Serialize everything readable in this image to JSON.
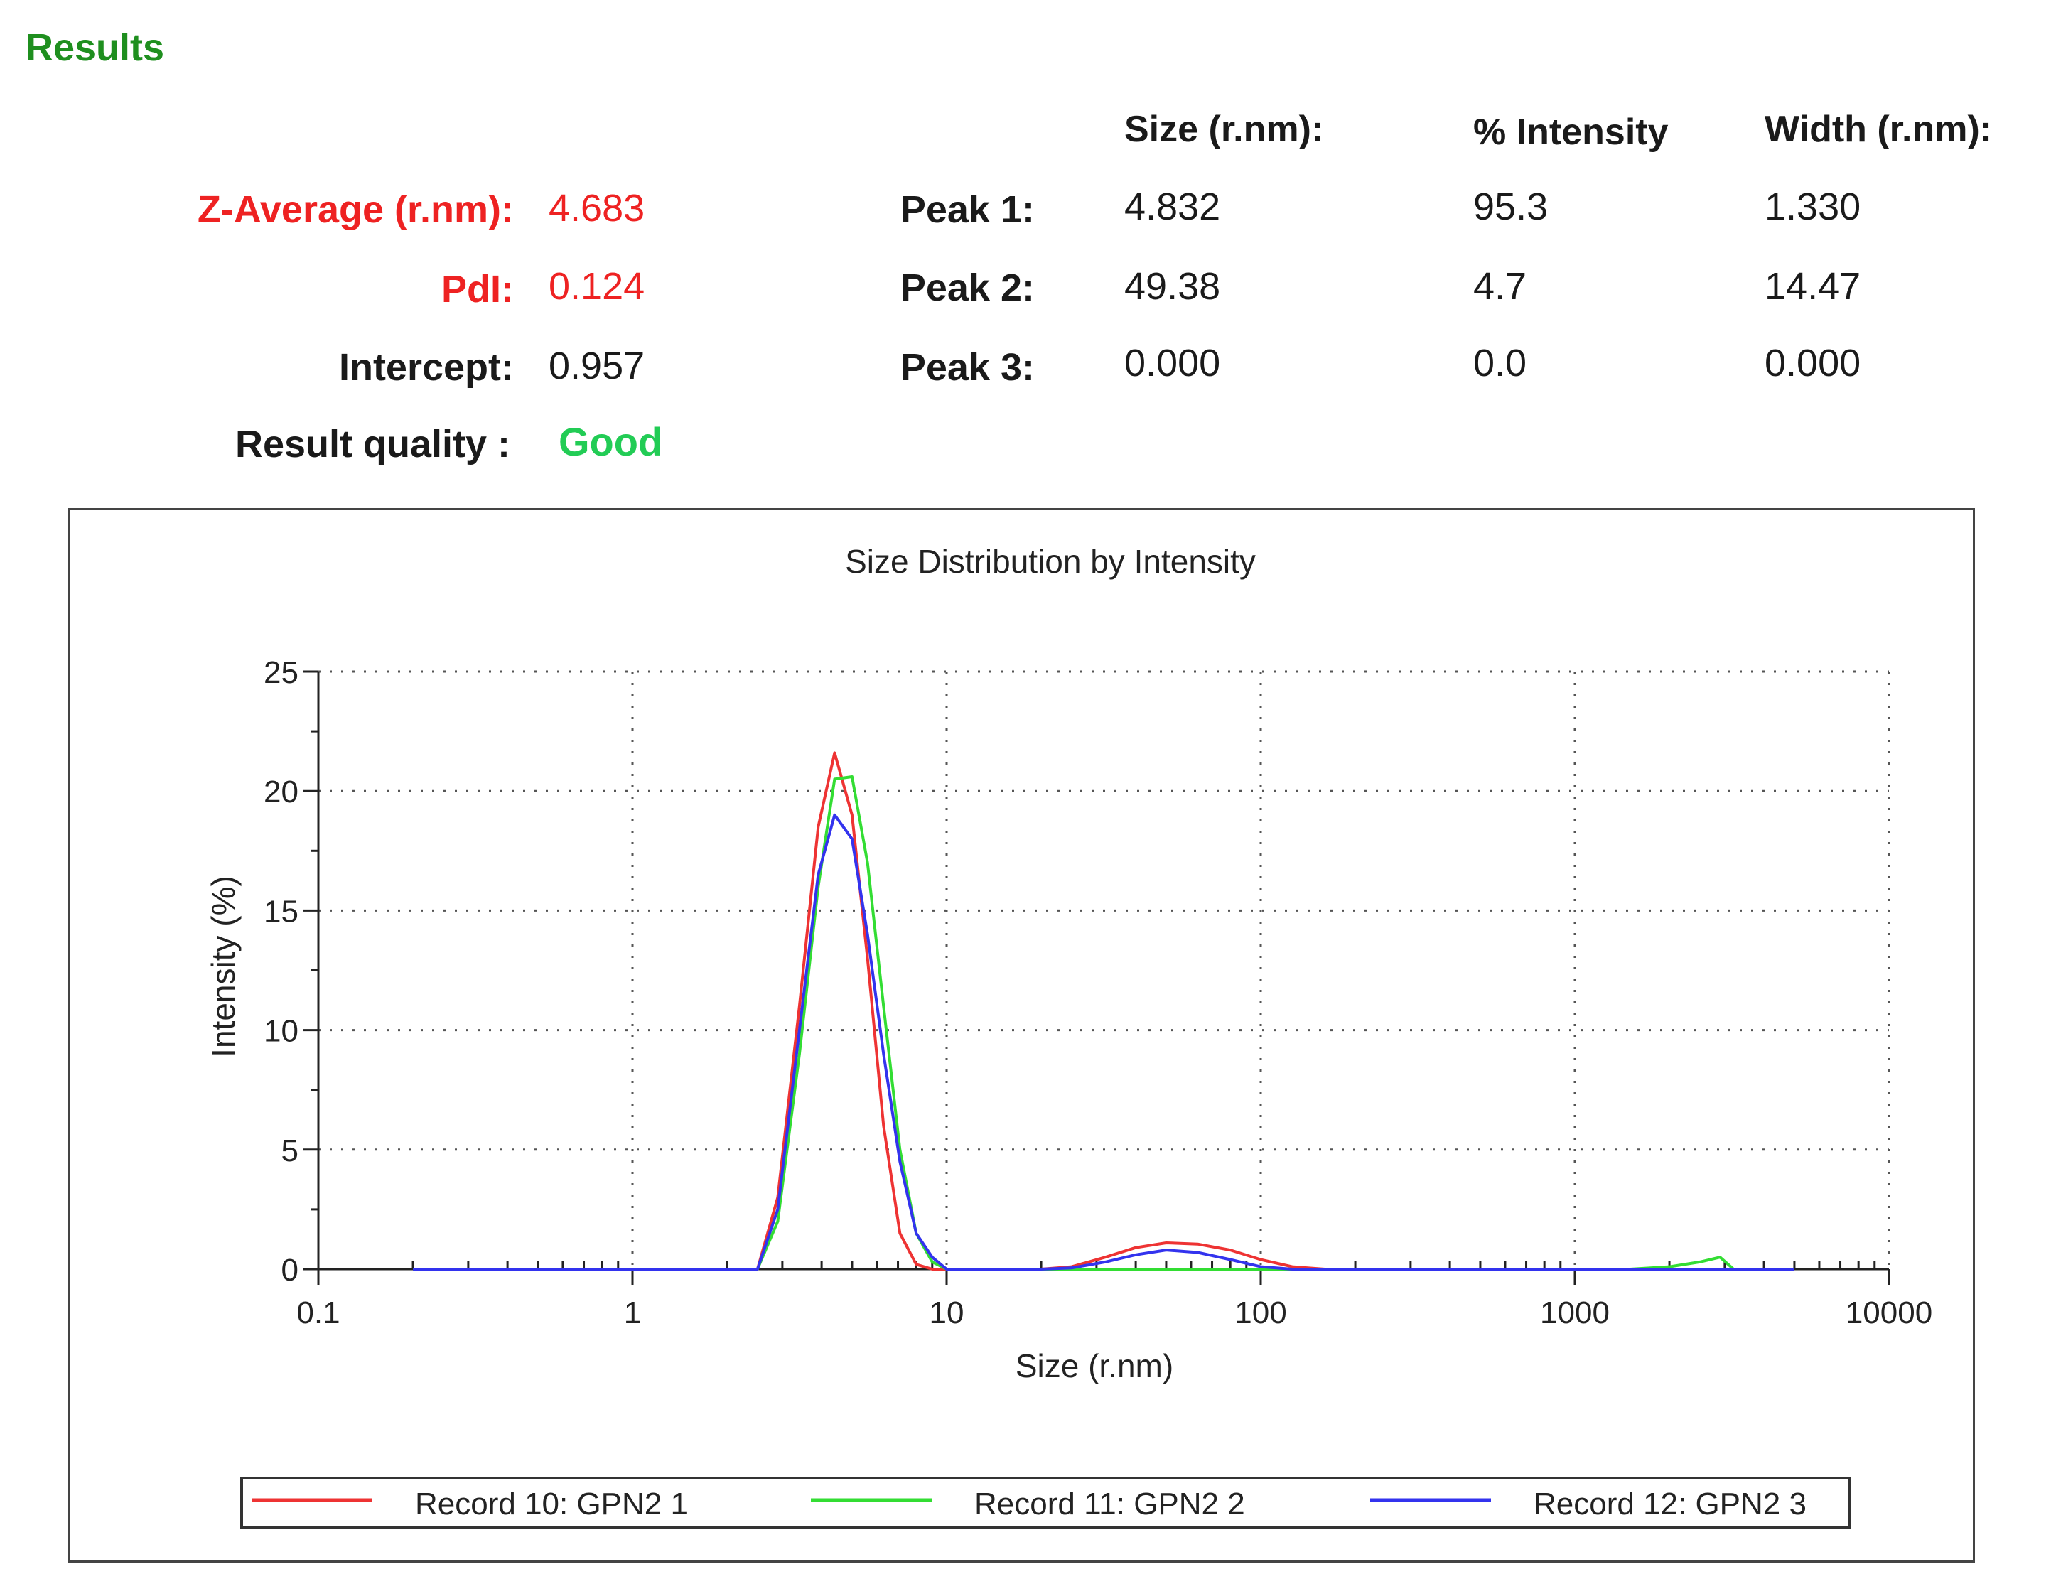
{
  "results": {
    "heading": "Results",
    "column_headers": {
      "size": "Size (r.nm):",
      "intensity": "% Intensity",
      "width": "Width (r.nm):"
    },
    "z_average": {
      "label": "Z-Average (r.nm):",
      "value": "4.683"
    },
    "pdi": {
      "label": "PdI:",
      "value": "0.124"
    },
    "intercept": {
      "label": "Intercept:",
      "value": "0.957"
    },
    "result_quality": {
      "label": "Result quality :",
      "value": "Good"
    },
    "peaks": [
      {
        "label": "Peak 1:",
        "size": "4.832",
        "intensity": "95.3",
        "width": "1.330"
      },
      {
        "label": "Peak 2:",
        "size": "49.38",
        "intensity": "4.7",
        "width": "14.47"
      },
      {
        "label": "Peak 3:",
        "size": "0.000",
        "intensity": "0.0",
        "width": "0.000"
      }
    ],
    "colors": {
      "heading": "#1f8f1f",
      "highlight": "#ee2222",
      "good": "#22cc55"
    }
  },
  "chart_data": {
    "type": "line",
    "title": "Size Distribution by Intensity",
    "xlabel": "Size (r.nm)",
    "ylabel": "Intensity (%)",
    "x_scale": "log",
    "xlim": [
      0.1,
      10000
    ],
    "ylim": [
      0,
      25
    ],
    "x_ticks": [
      0.1,
      1,
      10,
      100,
      1000,
      10000
    ],
    "x_tick_labels": [
      "0.1",
      "1",
      "10",
      "100",
      "1000",
      "10000"
    ],
    "y_ticks": [
      0,
      5,
      10,
      15,
      20,
      25
    ],
    "y_tick_labels": [
      "0",
      "5",
      "10",
      "15",
      "20",
      "25"
    ],
    "grid": true,
    "legend_position": "bottom",
    "series": [
      {
        "name": "Record 10: GPN2 1",
        "color": "#ee3333",
        "points": [
          [
            0.2,
            0
          ],
          [
            2.0,
            0
          ],
          [
            2.5,
            0
          ],
          [
            2.9,
            3.0
          ],
          [
            3.4,
            11.0
          ],
          [
            3.9,
            18.5
          ],
          [
            4.4,
            21.6
          ],
          [
            5.0,
            19.0
          ],
          [
            5.6,
            13.0
          ],
          [
            6.3,
            6.0
          ],
          [
            7.1,
            1.5
          ],
          [
            8.0,
            0.2
          ],
          [
            9.0,
            0
          ],
          [
            20,
            0
          ],
          [
            25,
            0.1
          ],
          [
            32,
            0.5
          ],
          [
            40,
            0.9
          ],
          [
            50,
            1.1
          ],
          [
            63,
            1.05
          ],
          [
            80,
            0.8
          ],
          [
            100,
            0.4
          ],
          [
            126,
            0.1
          ],
          [
            160,
            0
          ],
          [
            5000,
            0
          ]
        ]
      },
      {
        "name": "Record 11: GPN2 2",
        "color": "#33dd33",
        "points": [
          [
            0.2,
            0
          ],
          [
            2.0,
            0
          ],
          [
            2.5,
            0
          ],
          [
            2.9,
            2.0
          ],
          [
            3.4,
            9.0
          ],
          [
            3.9,
            16.0
          ],
          [
            4.4,
            20.5
          ],
          [
            5.0,
            20.6
          ],
          [
            5.6,
            17.0
          ],
          [
            6.3,
            11.0
          ],
          [
            7.1,
            5.0
          ],
          [
            8.0,
            1.5
          ],
          [
            9.0,
            0.3
          ],
          [
            10,
            0
          ],
          [
            1500,
            0
          ],
          [
            2000,
            0.1
          ],
          [
            2500,
            0.3
          ],
          [
            2900,
            0.5
          ],
          [
            3200,
            0
          ],
          [
            5000,
            0
          ]
        ]
      },
      {
        "name": "Record 12: GPN2 3",
        "color": "#3333ee",
        "points": [
          [
            0.2,
            0
          ],
          [
            2.0,
            0
          ],
          [
            2.5,
            0
          ],
          [
            2.9,
            2.5
          ],
          [
            3.4,
            10.0
          ],
          [
            3.9,
            16.5
          ],
          [
            4.4,
            19.0
          ],
          [
            5.0,
            18.0
          ],
          [
            5.6,
            14.0
          ],
          [
            6.3,
            9.0
          ],
          [
            7.1,
            4.5
          ],
          [
            8.0,
            1.5
          ],
          [
            9.0,
            0.5
          ],
          [
            10,
            0
          ],
          [
            20,
            0
          ],
          [
            25,
            0.05
          ],
          [
            32,
            0.3
          ],
          [
            40,
            0.6
          ],
          [
            50,
            0.8
          ],
          [
            63,
            0.7
          ],
          [
            80,
            0.4
          ],
          [
            100,
            0.1
          ],
          [
            126,
            0
          ],
          [
            5000,
            0
          ]
        ]
      }
    ]
  }
}
